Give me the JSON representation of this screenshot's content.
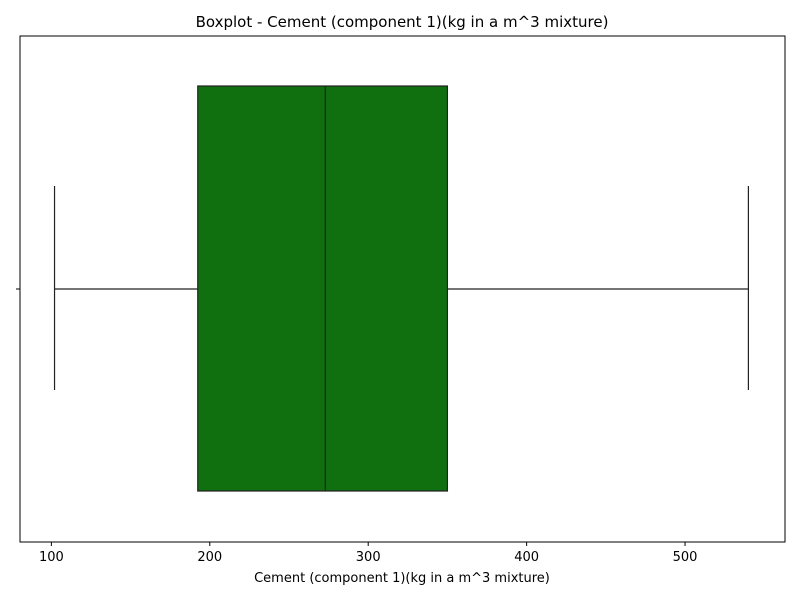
{
  "chart_data": {
    "type": "boxplot",
    "title": "Boxplot - Cement (component 1)(kg in a m^3 mixture)",
    "xlabel": "Cement (component 1)(kg in a m^3 mixture)",
    "ylabel": "",
    "orientation": "horizontal",
    "xlim": [
      80.2,
      563.1
    ],
    "xticks": [
      100,
      200,
      300,
      400,
      500
    ],
    "box": {
      "min": 102,
      "q1": 192.4,
      "median": 272.9,
      "q3": 350,
      "max": 540
    },
    "outliers": [],
    "grid": false,
    "legend": "none"
  },
  "colors": {
    "box_fill": "#107010",
    "line": "#222222",
    "axes": "#000000",
    "background": "#ffffff"
  }
}
